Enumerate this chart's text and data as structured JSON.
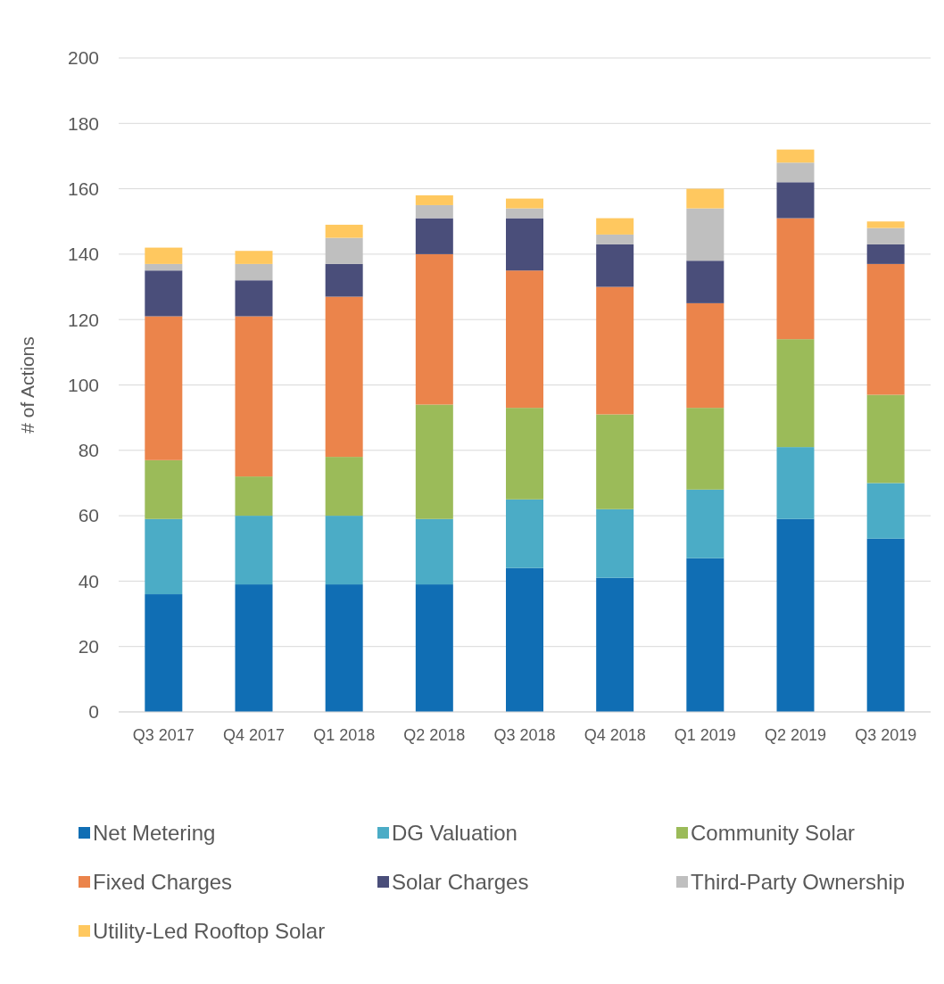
{
  "chart_data": {
    "type": "bar",
    "stacked": true,
    "ylabel": "# of Actions",
    "categories": [
      "Q3 2017",
      "Q4 2017",
      "Q1 2018",
      "Q2 2018",
      "Q3 2018",
      "Q4 2018",
      "Q1 2019",
      "Q2 2019",
      "Q3 2019"
    ],
    "series": [
      {
        "name": "Net Metering",
        "color": "#106eb4",
        "values": [
          36,
          39,
          39,
          39,
          44,
          41,
          47,
          59,
          53
        ]
      },
      {
        "name": "DG Valuation",
        "color": "#4bacc6",
        "values": [
          23,
          21,
          21,
          20,
          21,
          21,
          21,
          22,
          17
        ]
      },
      {
        "name": "Community Solar",
        "color": "#9bbb59",
        "values": [
          18,
          12,
          18,
          35,
          28,
          29,
          25,
          33,
          27
        ]
      },
      {
        "name": "Fixed Charges",
        "color": "#eb844b",
        "values": [
          44,
          49,
          49,
          46,
          42,
          39,
          32,
          37,
          40
        ]
      },
      {
        "name": "Solar Charges",
        "color": "#4a4e7a",
        "values": [
          14,
          11,
          10,
          11,
          16,
          13,
          13,
          11,
          6
        ]
      },
      {
        "name": "Third-Party Ownership",
        "color": "#bfbfbf",
        "values": [
          2,
          5,
          8,
          4,
          3,
          3,
          16,
          6,
          5
        ]
      },
      {
        "name": "Utility-Led Rooftop Solar",
        "color": "#ffc85f",
        "values": [
          5,
          4,
          4,
          3,
          3,
          5,
          6,
          4,
          2
        ]
      }
    ],
    "ylim": [
      0,
      200
    ],
    "yticks": [
      0,
      20,
      40,
      60,
      80,
      100,
      120,
      140,
      160,
      180,
      200
    ],
    "grid": "y",
    "legend": "bottom"
  }
}
